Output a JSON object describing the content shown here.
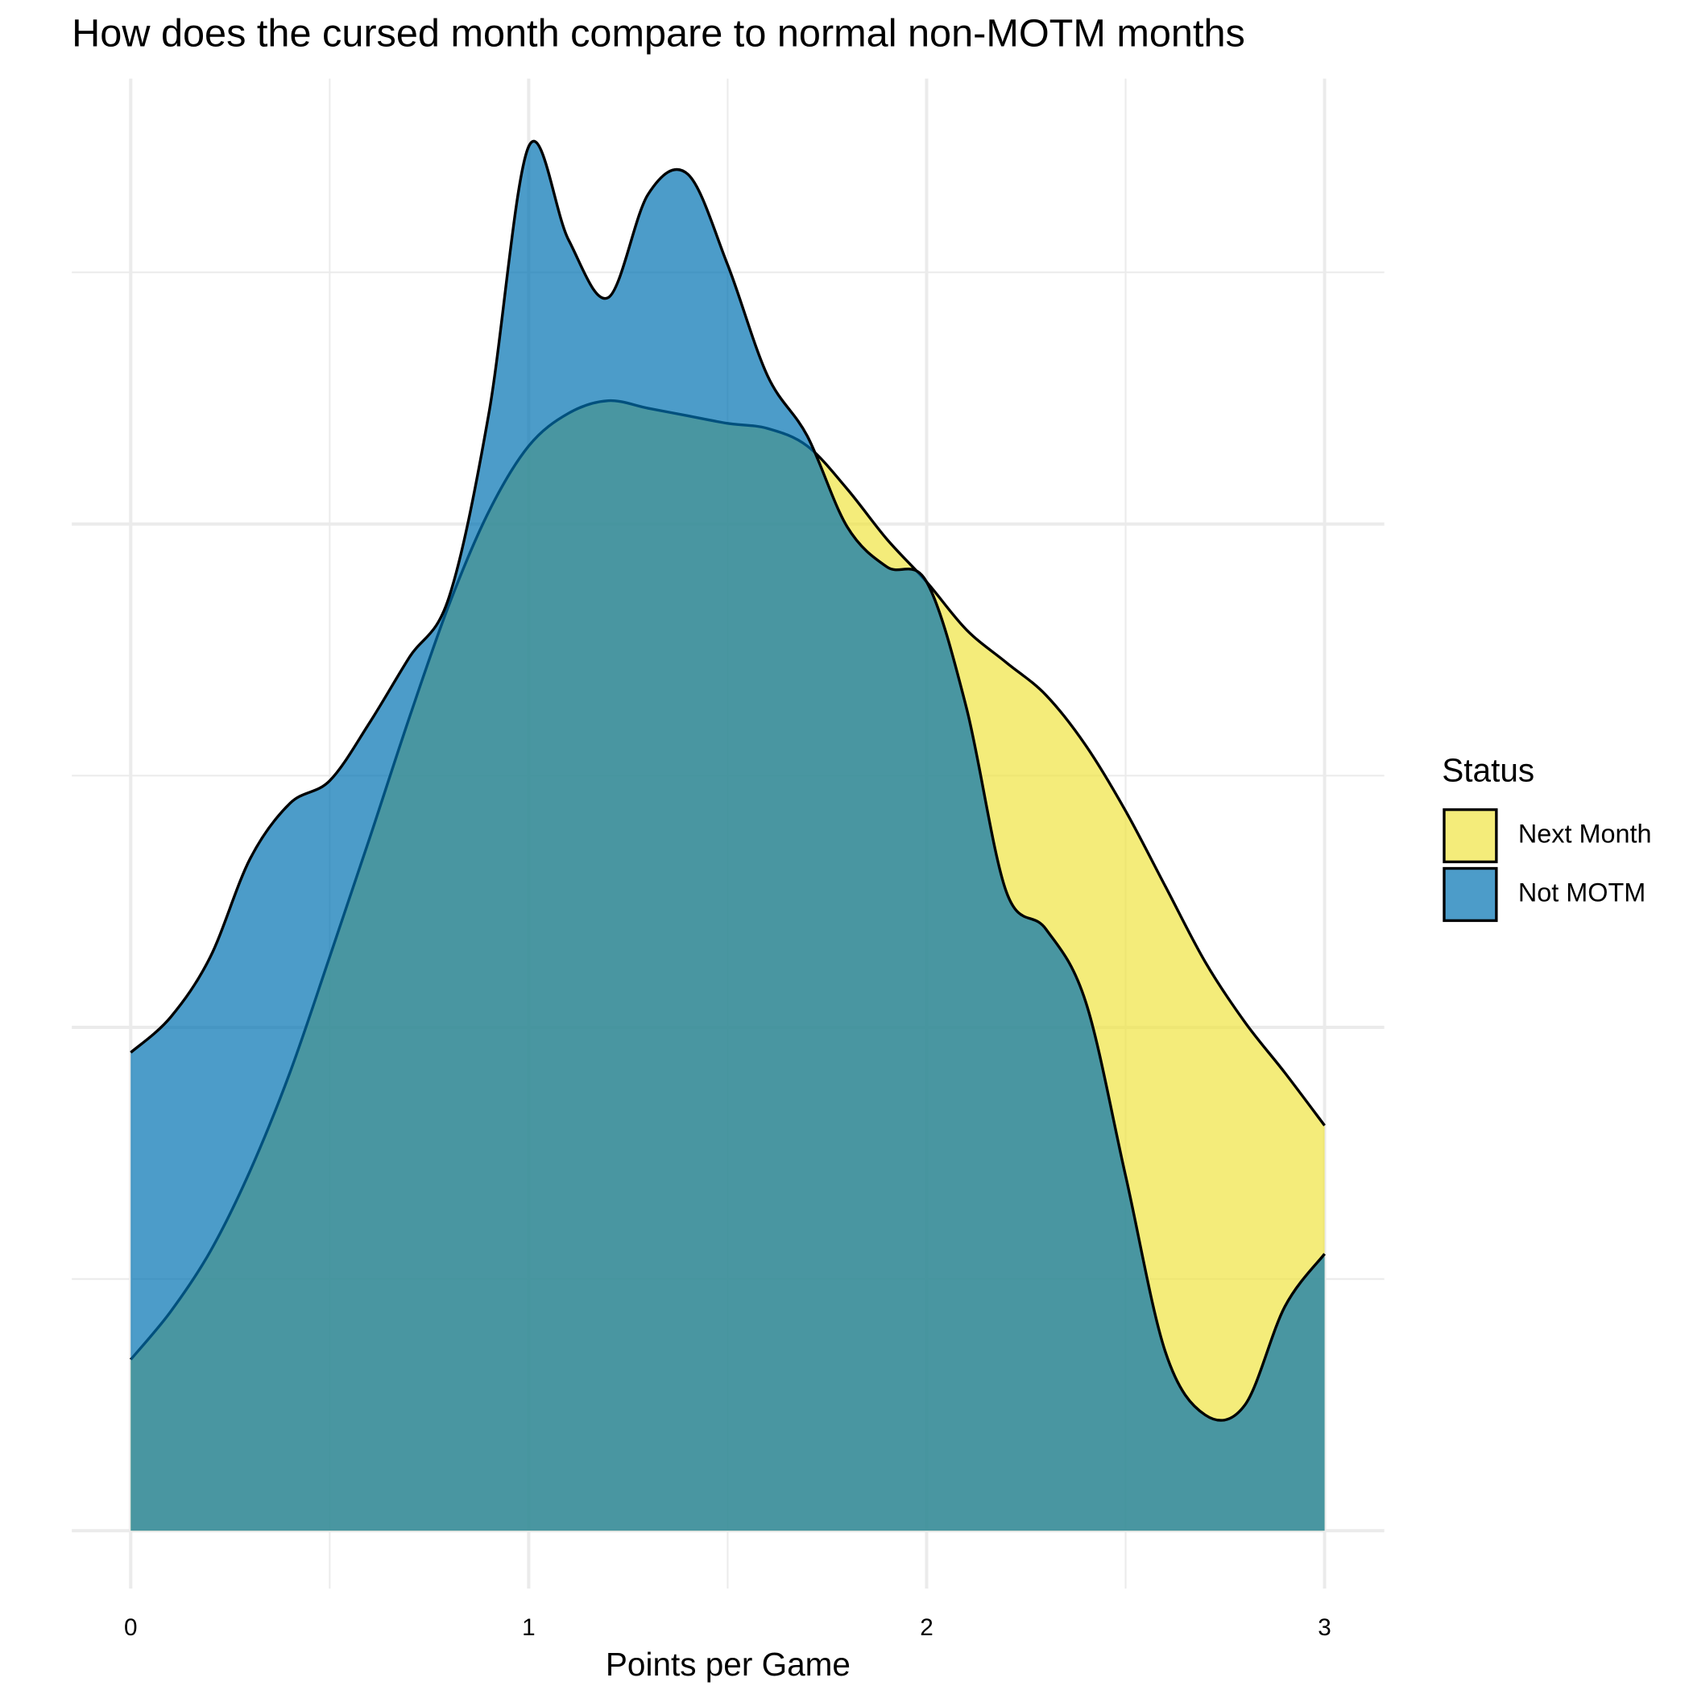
{
  "chart_data": {
    "type": "density",
    "title": "How does the cursed month compare to normal non-MOTM months",
    "x_label": "Points per Game",
    "legend_title": "Status",
    "legend_position": "right",
    "x": [
      0,
      0.1,
      0.2,
      0.3,
      0.4,
      0.5,
      0.6,
      0.7,
      0.8,
      0.9,
      1.0,
      1.1,
      1.2,
      1.3,
      1.4,
      1.5,
      1.6,
      1.7,
      1.8,
      1.9,
      2.0,
      2.1,
      2.2,
      2.3,
      2.4,
      2.5,
      2.6,
      2.7,
      2.8,
      2.9,
      3.0
    ],
    "series": [
      {
        "name": "Next Month",
        "color": "#f0e442",
        "values": [
          0.068,
          0.087,
          0.111,
          0.143,
          0.182,
          0.228,
          0.275,
          0.323,
          0.368,
          0.405,
          0.431,
          0.444,
          0.449,
          0.446,
          0.443,
          0.44,
          0.438,
          0.431,
          0.414,
          0.394,
          0.377,
          0.358,
          0.345,
          0.332,
          0.312,
          0.286,
          0.256,
          0.226,
          0.202,
          0.182,
          0.161
        ]
      },
      {
        "name": "Not MOTM",
        "color": "#0072b2",
        "values": [
          0.19,
          0.204,
          0.228,
          0.267,
          0.289,
          0.298,
          0.321,
          0.347,
          0.371,
          0.444,
          0.55,
          0.513,
          0.49,
          0.531,
          0.539,
          0.503,
          0.459,
          0.435,
          0.399,
          0.383,
          0.377,
          0.327,
          0.254,
          0.239,
          0.21,
          0.141,
          0.071,
          0.046,
          0.05,
          0.089,
          0.11
        ]
      }
    ],
    "fill_opacity": 0.7,
    "xlim": [
      -0.148,
      3.15
    ],
    "ylim": [
      -0.023,
      0.577
    ],
    "xticks": [
      0,
      1,
      2,
      3
    ],
    "xminorticks": [
      0.5,
      1.5,
      2.5
    ],
    "yticks": [
      0,
      0.2,
      0.4
    ],
    "yminorticks": [
      0.1,
      0.3,
      0.5
    ],
    "grid": true
  }
}
